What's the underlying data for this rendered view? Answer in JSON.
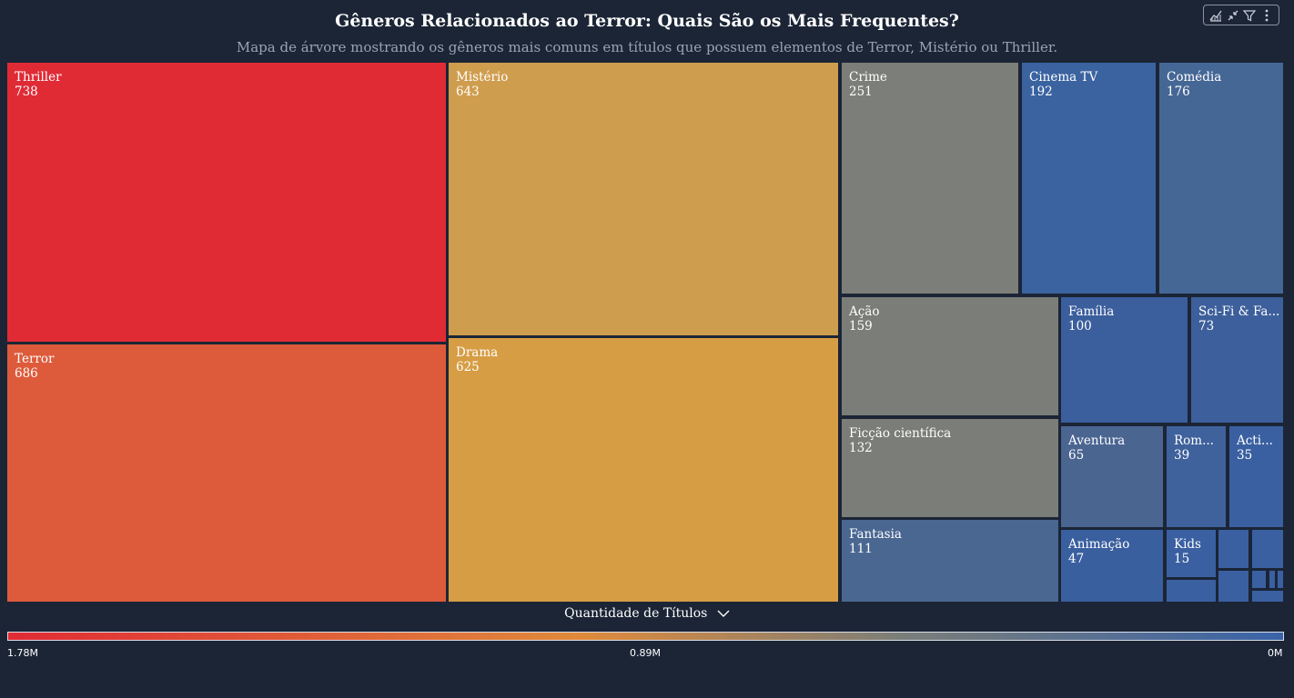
{
  "header": {
    "title": "Gêneros Relacionados ao Terror: Quais São os Mais Frequentes?",
    "subtitle": "Mapa de árvore mostrando os gêneros mais comuns em títulos que possuem elementos de Terror, Mistério ou Thriller."
  },
  "toolbar": {
    "icons": [
      "performance-icon",
      "collapse-icon",
      "filter-icon",
      "more-options-icon"
    ]
  },
  "legend": {
    "title": "Quantidade de Títulos",
    "tick_left": "1.78M",
    "tick_mid": "0.89M",
    "tick_right": "0M",
    "colors": [
      "#e02b35",
      "#df8a3b",
      "#7b7e79",
      "#3a63a8"
    ]
  },
  "chart_data": {
    "type": "treemap",
    "title": "Gêneros Relacionados ao Terror: Quais São os Mais Frequentes?",
    "subtitle": "Mapa de árvore mostrando os gêneros mais comuns em títulos que possuem elementos de Terror, Mistério ou Thriller.",
    "color_scale_label": "Quantidade de Títulos",
    "tiles": [
      {
        "label": "Thriller",
        "value": 738,
        "display_value": "738",
        "color": "#e02b35"
      },
      {
        "label": "Terror",
        "value": 686,
        "display_value": "686",
        "color": "#dd5b3b"
      },
      {
        "label": "Mistério",
        "value": 643,
        "display_value": "643",
        "color": "#cf9d4e"
      },
      {
        "label": "Drama",
        "value": 625,
        "display_value": "625",
        "color": "#d69d45"
      },
      {
        "label": "Crime",
        "value": 251,
        "display_value": "251",
        "color": "#7c7e79"
      },
      {
        "label": "Cinema TV",
        "value": 192,
        "display_value": "192",
        "color": "#3a63a0"
      },
      {
        "label": "Comédia",
        "value": 176,
        "display_value": "176",
        "color": "#456795"
      },
      {
        "label": "Ação",
        "value": 159,
        "display_value": "159",
        "color": "#7b7d79"
      },
      {
        "label": "Ficção científica",
        "value": 132,
        "display_value": "132",
        "color": "#7b7d79"
      },
      {
        "label": "Fantasia",
        "value": 111,
        "display_value": "111",
        "color": "#4a6792"
      },
      {
        "label": "Família",
        "value": 100,
        "display_value": "100",
        "color": "#3b5e9d"
      },
      {
        "label": "Sci-Fi & Fa...",
        "value": 73,
        "display_value": "73",
        "color": "#3d609c"
      },
      {
        "label": "Aventura",
        "value": 65,
        "display_value": "65",
        "color": "#4b6591"
      },
      {
        "label": "Animação",
        "value": 47,
        "display_value": "47",
        "color": "#3a5f9f"
      },
      {
        "label": "Rom...",
        "value": 39,
        "display_value": "39",
        "color": "#3f629c"
      },
      {
        "label": "Acti...",
        "value": 35,
        "display_value": "35",
        "color": "#3a60a1"
      },
      {
        "label": "Kids",
        "value": 15,
        "display_value": "15",
        "color": "#3a60a1"
      },
      {
        "label": "",
        "value": 13,
        "display_value": "",
        "color": "#3a60a1"
      },
      {
        "label": "",
        "value": 12,
        "display_value": "",
        "color": "#3a60a1"
      },
      {
        "label": "",
        "value": 10,
        "display_value": "",
        "color": "#3a60a1"
      },
      {
        "label": "",
        "value": 10,
        "display_value": "",
        "color": "#3a60a1"
      },
      {
        "label": "",
        "value": 4,
        "display_value": "",
        "color": "#3a60a1"
      },
      {
        "label": "",
        "value": 3,
        "display_value": "",
        "color": "#3a60a1"
      },
      {
        "label": "",
        "value": 3,
        "display_value": "",
        "color": "#3a60a1"
      },
      {
        "label": "",
        "value": 3,
        "display_value": "",
        "color": "#3a60a1"
      }
    ]
  }
}
